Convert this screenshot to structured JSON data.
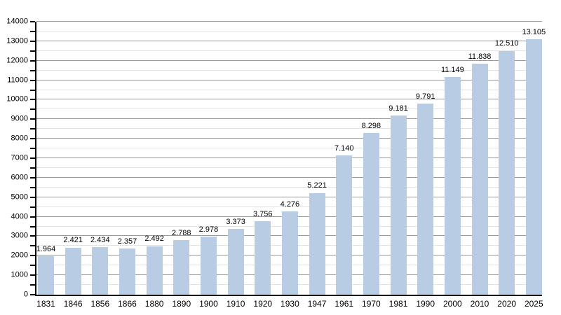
{
  "chart_data": {
    "type": "bar",
    "title": "",
    "xlabel": "",
    "ylabel": "",
    "categories": [
      "1831",
      "1846",
      "1856",
      "1866",
      "1880",
      "1890",
      "1900",
      "1910",
      "1920",
      "1930",
      "1947",
      "1961",
      "1970",
      "1981",
      "1990",
      "2000",
      "2010",
      "2020",
      "2025"
    ],
    "values": [
      1964,
      2421,
      2434,
      2357,
      2492,
      2788,
      2978,
      3373,
      3756,
      4276,
      5221,
      7140,
      8298,
      9181,
      9791,
      11149,
      11838,
      12510,
      13105
    ],
    "bar_value_labels": [
      "1.964",
      "2.421",
      "2.434",
      "2.357",
      "2.492",
      "2.788",
      "2.978",
      "3.373",
      "3.756",
      "4.276",
      "5.221",
      "7.140",
      "8.298",
      "9.181",
      "9.791",
      "11.149",
      "11.838",
      "12.510",
      "13.105"
    ],
    "ylim": [
      0,
      14000
    ],
    "ytick_labels": [
      "0",
      "1000",
      "2000",
      "3000",
      "4000",
      "5000",
      "6000",
      "7000",
      "8000",
      "9000",
      "10000",
      "11000",
      "12000",
      "13000",
      "14000"
    ],
    "ytick_step": 1000,
    "minor_tick_step": 500,
    "grid": "horizontal, major + minor",
    "legend_position": "none",
    "colors": {
      "bar_fill": "#b8cce4",
      "major_gridline": "#9a9a9a",
      "minor_gridline": "#e2e2e2",
      "axis_line": "#000000",
      "text": "#000000",
      "background": "#ffffff"
    }
  }
}
